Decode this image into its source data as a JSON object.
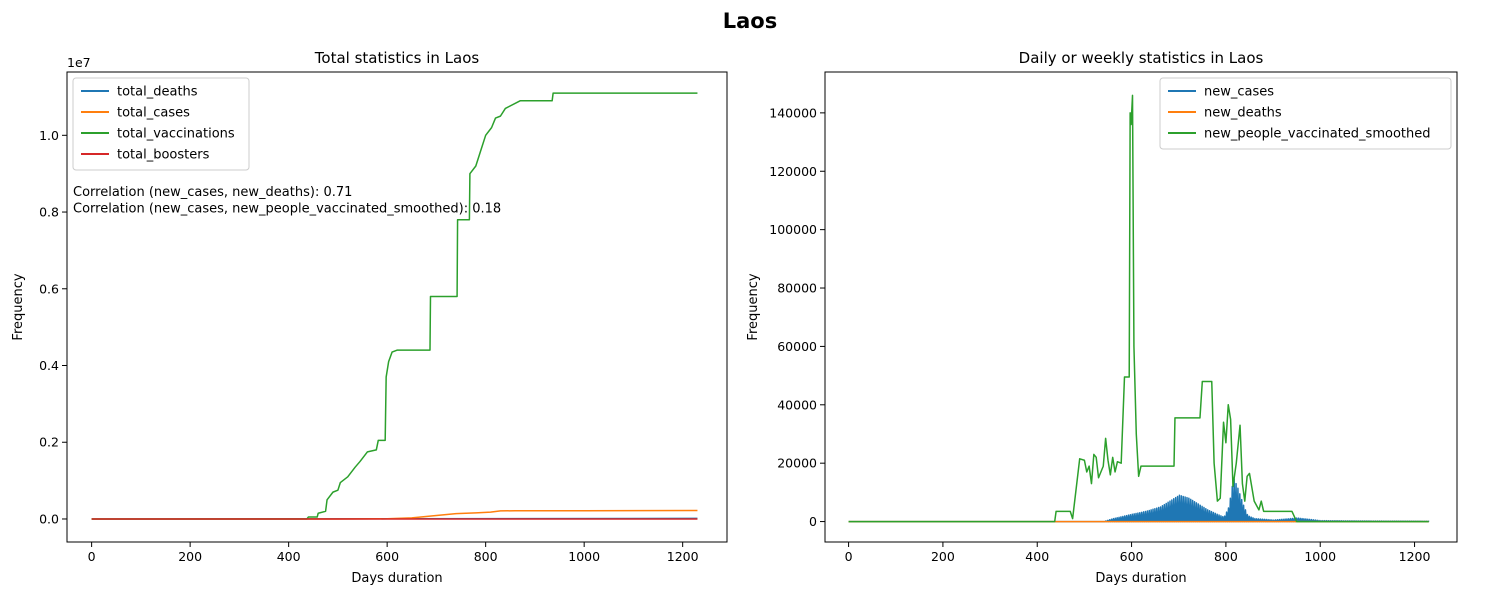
{
  "figure": {
    "suptitle": "Laos"
  },
  "chart_data": [
    {
      "type": "line",
      "title": "Total statistics in Laos",
      "xlabel": "Days duration",
      "ylabel": "Frequency",
      "xlim": [
        -50,
        1290
      ],
      "ylim": [
        -600000,
        11650000
      ],
      "xticks": [
        0,
        200,
        400,
        600,
        800,
        1000,
        1200
      ],
      "yticks": [
        0,
        2000000,
        4000000,
        6000000,
        8000000,
        10000000
      ],
      "ytick_labels": [
        "0.0",
        "0.2",
        "0.4",
        "0.6",
        "0.8",
        "1.0"
      ],
      "y_offset_label": "1e7",
      "legend_position": "upper left",
      "annotations": [
        "Correlation (new_cases, new_deaths): 0.71",
        "Correlation (new_cases, new_people_vaccinated_smoothed): 0.18"
      ],
      "series": [
        {
          "name": "total_deaths",
          "color": "#1f77b4",
          "points": [
            [
              0,
              0
            ],
            [
              1230,
              15000
            ]
          ]
        },
        {
          "name": "total_cases",
          "color": "#ff7f0e",
          "points": [
            [
              0,
              0
            ],
            [
              500,
              0
            ],
            [
              600,
              5000
            ],
            [
              650,
              30000
            ],
            [
              700,
              90000
            ],
            [
              740,
              140000
            ],
            [
              780,
              160000
            ],
            [
              810,
              180000
            ],
            [
              830,
              210000
            ],
            [
              860,
              215000
            ],
            [
              1000,
              215000
            ],
            [
              1230,
              220000
            ]
          ]
        },
        {
          "name": "total_vaccinations",
          "color": "#2ca02c",
          "points": [
            [
              0,
              0
            ],
            [
              437,
              0
            ],
            [
              440,
              50000
            ],
            [
              458,
              50000
            ],
            [
              460,
              150000
            ],
            [
              475,
              200000
            ],
            [
              478,
              500000
            ],
            [
              490,
              700000
            ],
            [
              500,
              750000
            ],
            [
              505,
              950000
            ],
            [
              520,
              1100000
            ],
            [
              535,
              1350000
            ],
            [
              545,
              1500000
            ],
            [
              560,
              1750000
            ],
            [
              578,
              1800000
            ],
            [
              582,
              2050000
            ],
            [
              596,
              2050000
            ],
            [
              598,
              3700000
            ],
            [
              603,
              4100000
            ],
            [
              610,
              4350000
            ],
            [
              620,
              4400000
            ],
            [
              687,
              4400000
            ],
            [
              688,
              5800000
            ],
            [
              742,
              5800000
            ],
            [
              743,
              7800000
            ],
            [
              767,
              7800000
            ],
            [
              768,
              9000000
            ],
            [
              780,
              9200000
            ],
            [
              790,
              9600000
            ],
            [
              800,
              10000000
            ],
            [
              812,
              10200000
            ],
            [
              820,
              10450000
            ],
            [
              830,
              10500000
            ],
            [
              840,
              10700000
            ],
            [
              870,
              10900000
            ],
            [
              900,
              10900000
            ],
            [
              935,
              10900000
            ],
            [
              937,
              11100000
            ],
            [
              1230,
              11100000
            ]
          ]
        },
        {
          "name": "total_boosters",
          "color": "#d62728",
          "points": [
            [
              0,
              0
            ],
            [
              1230,
              0
            ]
          ]
        }
      ]
    },
    {
      "type": "line",
      "title": "Daily or weekly statistics in Laos",
      "xlabel": "Days duration",
      "ylabel": "Frequency",
      "xlim": [
        -50,
        1290
      ],
      "ylim": [
        -7000,
        154000
      ],
      "xticks": [
        0,
        200,
        400,
        600,
        800,
        1000,
        1200
      ],
      "yticks": [
        0,
        20000,
        40000,
        60000,
        80000,
        100000,
        120000,
        140000
      ],
      "legend_position": "upper right",
      "series": [
        {
          "name": "new_cases",
          "color": "#1f77b4",
          "style": "spiky",
          "points": [
            [
              0,
              0
            ],
            [
              540,
              0
            ],
            [
              560,
              1000
            ],
            [
              600,
              2500
            ],
            [
              630,
              3500
            ],
            [
              660,
              5000
            ],
            [
              680,
              7000
            ],
            [
              700,
              9000
            ],
            [
              720,
              8000
            ],
            [
              740,
              6000
            ],
            [
              760,
              4000
            ],
            [
              780,
              2500
            ],
            [
              795,
              1500
            ],
            [
              805,
              5000
            ],
            [
              815,
              15000
            ],
            [
              825,
              11000
            ],
            [
              835,
              6000
            ],
            [
              845,
              2000
            ],
            [
              860,
              1000
            ],
            [
              900,
              500
            ],
            [
              950,
              1200
            ],
            [
              1000,
              300
            ],
            [
              1080,
              200
            ],
            [
              1230,
              100
            ]
          ]
        },
        {
          "name": "new_deaths",
          "color": "#ff7f0e",
          "points": [
            [
              0,
              0
            ],
            [
              1230,
              0
            ]
          ]
        },
        {
          "name": "new_people_vaccinated_smoothed",
          "color": "#2ca02c",
          "points": [
            [
              0,
              0
            ],
            [
              437,
              0
            ],
            [
              440,
              3500
            ],
            [
              470,
              3500
            ],
            [
              475,
              1000
            ],
            [
              490,
              21500
            ],
            [
              500,
              21000
            ],
            [
              505,
              17000
            ],
            [
              510,
              19000
            ],
            [
              515,
              13000
            ],
            [
              520,
              23000
            ],
            [
              525,
              22000
            ],
            [
              530,
              15000
            ],
            [
              540,
              19000
            ],
            [
              545,
              28500
            ],
            [
              550,
              21000
            ],
            [
              555,
              16000
            ],
            [
              560,
              22000
            ],
            [
              565,
              17000
            ],
            [
              570,
              20500
            ],
            [
              578,
              20000
            ],
            [
              585,
              49500
            ],
            [
              595,
              49500
            ],
            [
              597,
              140000
            ],
            [
              599,
              136000
            ],
            [
              602,
              146000
            ],
            [
              605,
              60000
            ],
            [
              610,
              30000
            ],
            [
              615,
              15500
            ],
            [
              620,
              19000
            ],
            [
              690,
              19000
            ],
            [
              692,
              35500
            ],
            [
              745,
              35500
            ],
            [
              750,
              48000
            ],
            [
              770,
              48000
            ],
            [
              775,
              20000
            ],
            [
              782,
              7000
            ],
            [
              788,
              8000
            ],
            [
              795,
              34000
            ],
            [
              800,
              27000
            ],
            [
              805,
              40000
            ],
            [
              810,
              35000
            ],
            [
              815,
              12000
            ],
            [
              822,
              20000
            ],
            [
              830,
              33000
            ],
            [
              835,
              13000
            ],
            [
              840,
              7000
            ],
            [
              845,
              15500
            ],
            [
              850,
              16500
            ],
            [
              860,
              7000
            ],
            [
              870,
              4000
            ],
            [
              875,
              7000
            ],
            [
              880,
              3500
            ],
            [
              890,
              3500
            ],
            [
              940,
              3500
            ],
            [
              950,
              0
            ],
            [
              1230,
              0
            ]
          ]
        }
      ]
    }
  ]
}
